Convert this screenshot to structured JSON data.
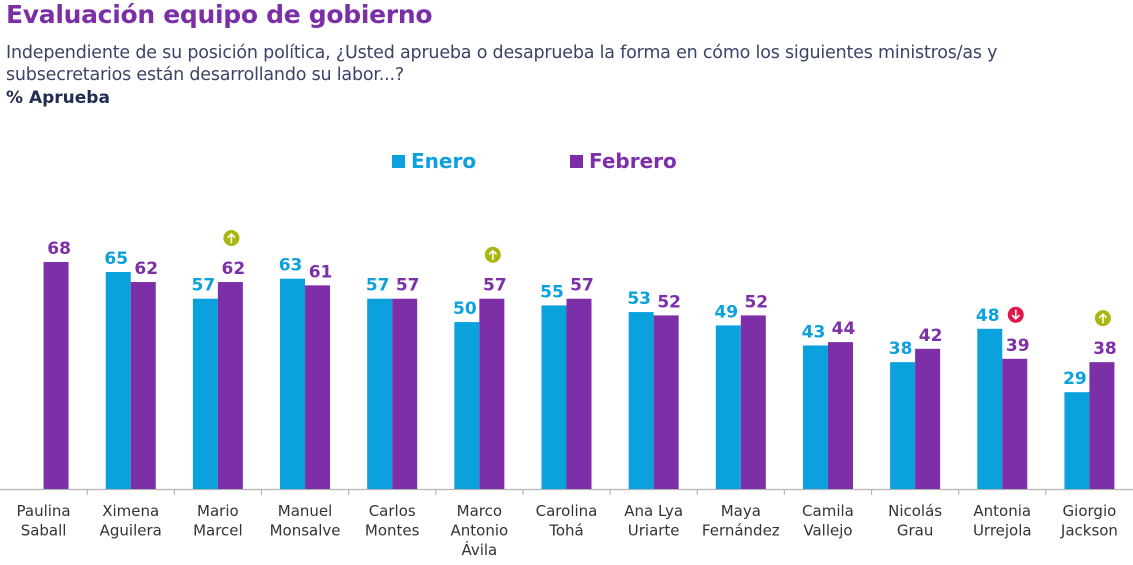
{
  "header": {
    "title": "Evaluación equipo de gobierno",
    "subtitle": "Independiente de su posición política, ¿Usted aprueba o desaprueba la forma en cómo los siguientes ministros/as y subsecretarios están desarrollando su labor...?",
    "measure": "% Aprueba"
  },
  "colors": {
    "enero": "#0aa1dd",
    "febrero": "#7d2fa8",
    "up": "#a9b60f",
    "down": "#e0184a",
    "title": "#7b2fa6"
  },
  "chart_data": {
    "type": "bar",
    "title": "Evaluación equipo de gobierno",
    "xlabel": "",
    "ylabel": "% Aprueba",
    "ylim": [
      0,
      75
    ],
    "grid": false,
    "legend_position": "top-center",
    "categories": [
      [
        "Paulina",
        "Saball"
      ],
      [
        "Ximena",
        "Aguilera"
      ],
      [
        "Mario",
        "Marcel"
      ],
      [
        "Manuel",
        "Monsalve"
      ],
      [
        "Carlos",
        "Montes"
      ],
      [
        "Marco",
        "Antonio",
        "Ávila"
      ],
      [
        "Carolina",
        "Tohá"
      ],
      [
        "Ana Lya",
        "Uriarte"
      ],
      [
        "Maya",
        "Fernández"
      ],
      [
        "Camila",
        "Vallejo"
      ],
      [
        "Nicolás",
        "Grau"
      ],
      [
        "Antonia",
        "Urrejola"
      ],
      [
        "Giorgio",
        "Jackson"
      ]
    ],
    "series": [
      {
        "name": "Enero",
        "values": [
          null,
          65,
          57,
          63,
          57,
          50,
          55,
          53,
          49,
          43,
          38,
          48,
          29
        ]
      },
      {
        "name": "Febrero",
        "values": [
          68,
          62,
          62,
          61,
          57,
          57,
          57,
          52,
          52,
          44,
          42,
          39,
          38
        ]
      }
    ],
    "annotations": [
      {
        "category_index": 2,
        "type": "significant-increase",
        "icon": "arrow-up"
      },
      {
        "category_index": 5,
        "type": "significant-increase",
        "icon": "arrow-up"
      },
      {
        "category_index": 11,
        "type": "significant-decrease",
        "icon": "arrow-down"
      },
      {
        "category_index": 12,
        "type": "significant-increase",
        "icon": "arrow-up"
      }
    ]
  }
}
